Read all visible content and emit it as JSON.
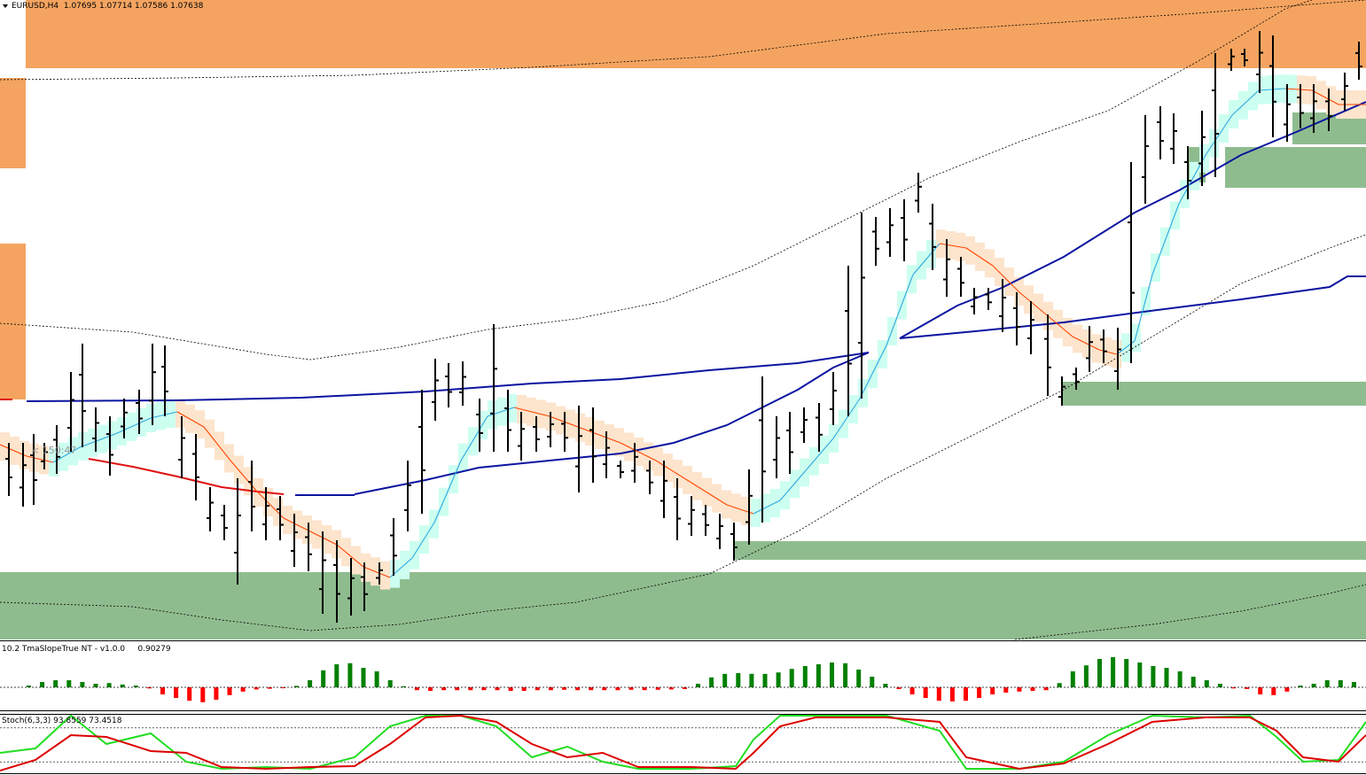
{
  "main_panel": {
    "title": "EURUSD,H4",
    "ohlc": "1.07695 1.07714 1.07586 1.07638",
    "countdown": "< 150:47"
  },
  "colors": {
    "supply_zone": "#f4a460",
    "demand_zone": "#8fbc8f",
    "bar": "#000000",
    "tma_up_band": "#ccfff0",
    "tma_down_band": "#fde4cc",
    "tma_up_line": "#2ea8e0",
    "tma_down_line": "#ff4500",
    "ma_blue": "#0a14a0",
    "ma_red": "#e01010",
    "hist_up": "#008000",
    "hist_down": "#ff0000",
    "stoch_main": "#22dd22",
    "stoch_signal": "#dd0000"
  },
  "tma_panel": {
    "title": "10.2 TmaSlopeTrue NT  -  v1.0.0",
    "value": "0.90279"
  },
  "stoch_panel": {
    "title": "Stoch(6,3,3) 93.8559 73.4518"
  },
  "chart_data": {
    "type": "ohlc",
    "symbol": "EURUSD",
    "timeframe": "H4",
    "last_bar": {
      "open": 1.07695,
      "high": 1.07714,
      "low": 1.07586,
      "close": 1.07638
    },
    "zones": {
      "supply": [
        {
          "from": 0,
          "to": 1,
          "high_px_ref": 0.0,
          "low_px_ref": 0.088
        },
        {
          "from": 0,
          "to": 0.018,
          "high_px_ref": 0.1,
          "low_px_ref": 0.218
        },
        {
          "from": 0,
          "to": 0.018,
          "high_px_ref": 0.316,
          "low_px_ref": 0.516
        }
      ]
    },
    "tma_slope": {
      "values": [
        0.05,
        0.15,
        0.2,
        0.2,
        0.15,
        0.1,
        0.12,
        0.08,
        0.05,
        -0.03,
        -0.2,
        -0.3,
        -0.38,
        -0.42,
        -0.35,
        -0.22,
        -0.12,
        -0.06,
        -0.04,
        -0.02,
        0.04,
        0.2,
        0.48,
        0.65,
        0.68,
        0.55,
        0.45,
        0.2,
        0.03,
        -0.08,
        -0.1,
        -0.08,
        -0.08,
        -0.08,
        -0.08,
        -0.08,
        -0.1,
        -0.1,
        -0.08,
        -0.08,
        -0.07,
        -0.08,
        -0.08,
        -0.08,
        -0.08,
        -0.07,
        -0.08,
        -0.07,
        -0.06,
        -0.05,
        0.1,
        0.28,
        0.38,
        0.4,
        0.38,
        0.38,
        0.42,
        0.52,
        0.6,
        0.65,
        0.7,
        0.68,
        0.5,
        0.3,
        0.1,
        -0.05,
        -0.2,
        -0.3,
        -0.38,
        -0.4,
        -0.38,
        -0.3,
        -0.2,
        -0.15,
        -0.12,
        -0.1,
        -0.08,
        0.12,
        0.45,
        0.62,
        0.8,
        0.85,
        0.8,
        0.7,
        0.6,
        0.55,
        0.45,
        0.3,
        0.2,
        0.1,
        -0.03,
        -0.05,
        -0.2,
        -0.22,
        -0.12,
        0.05,
        0.1,
        0.2,
        0.2,
        0.15
      ]
    },
    "stochastic": {
      "k_period": 6,
      "d_period": 3,
      "slowing": 3,
      "main": 93.8559,
      "signal": 73.4518,
      "levels": [
        80,
        20
      ]
    }
  }
}
